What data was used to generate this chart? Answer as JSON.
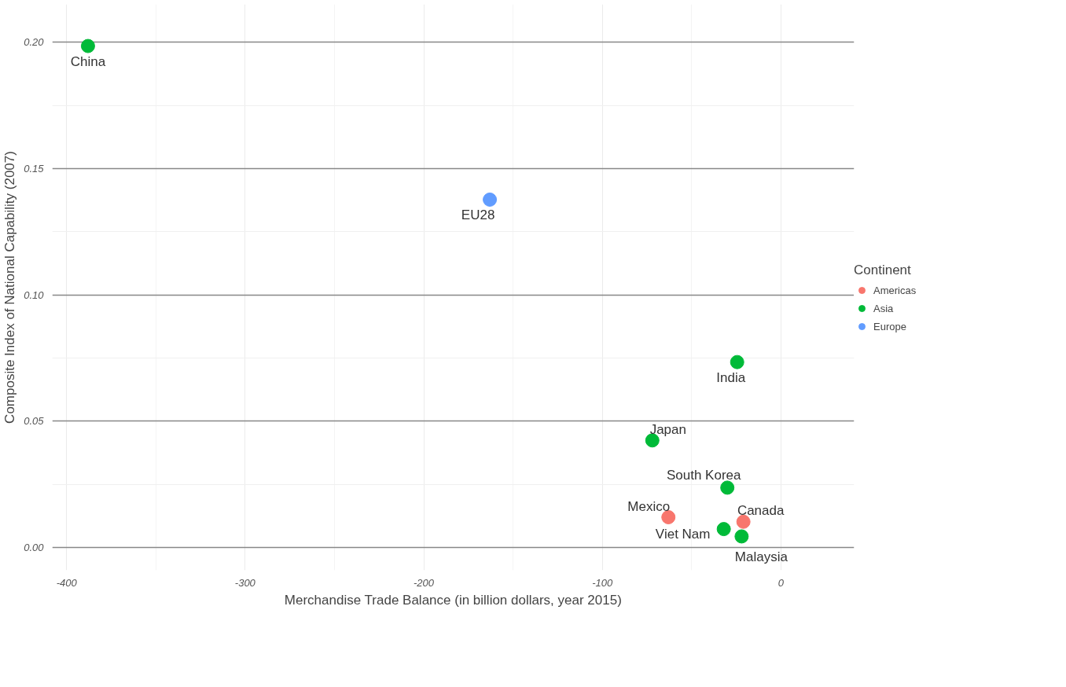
{
  "chart_data": {
    "type": "scatter",
    "xlabel": "Merchandise Trade Balance (in billion dollars, year 2015)",
    "ylabel": "Composite Index of National Capability (2007)",
    "legend_title": "Continent",
    "legend": "right",
    "grid": true,
    "marker": "circle",
    "xlim": [
      -408,
      41
    ],
    "ylim": [
      -0.009,
      0.215
    ],
    "xticks": [
      -400,
      -300,
      -200,
      -100,
      0
    ],
    "yticks": [
      {
        "value": 0,
        "label": "0.00"
      },
      0.05,
      {
        "value": 0.1,
        "label": "0.10"
      },
      0.15,
      {
        "value": 0.2,
        "label": "0.20"
      }
    ],
    "series": [
      {
        "name": "Americas",
        "color": "#f8766d",
        "x": [
          -63,
          -21
        ],
        "values": [
          0.012,
          0.0102
        ]
      },
      {
        "name": "Asia",
        "color": "#00ba38",
        "x": [
          -388,
          -24.5,
          -72,
          -30,
          -32,
          -22
        ],
        "values": [
          0.1985,
          0.0734,
          0.0424,
          0.0237,
          0.0073,
          0.0044
        ]
      },
      {
        "name": "Europe",
        "color": "#619cff",
        "x": [
          -163
        ],
        "values": [
          0.1377
        ]
      }
    ],
    "annotations": [
      {
        "text": "Mexico",
        "x": -63,
        "y": 0.012
      },
      {
        "text": "Canada",
        "x": -21,
        "y": 0.0102
      },
      {
        "text": "China",
        "x": -388,
        "y": 0.1985
      },
      {
        "text": "India",
        "x": -24.5,
        "y": 0.0734
      },
      {
        "text": "Japan",
        "x": -72,
        "y": 0.0424
      },
      {
        "text": "South Korea",
        "x": -30,
        "y": 0.0237
      },
      {
        "text": "Viet Nam",
        "x": -32,
        "y": 0.0073
      },
      {
        "text": "Malaysia",
        "x": -22,
        "y": 0.0044
      },
      {
        "text": "EU28",
        "x": -163,
        "y": 0.1377
      }
    ]
  }
}
